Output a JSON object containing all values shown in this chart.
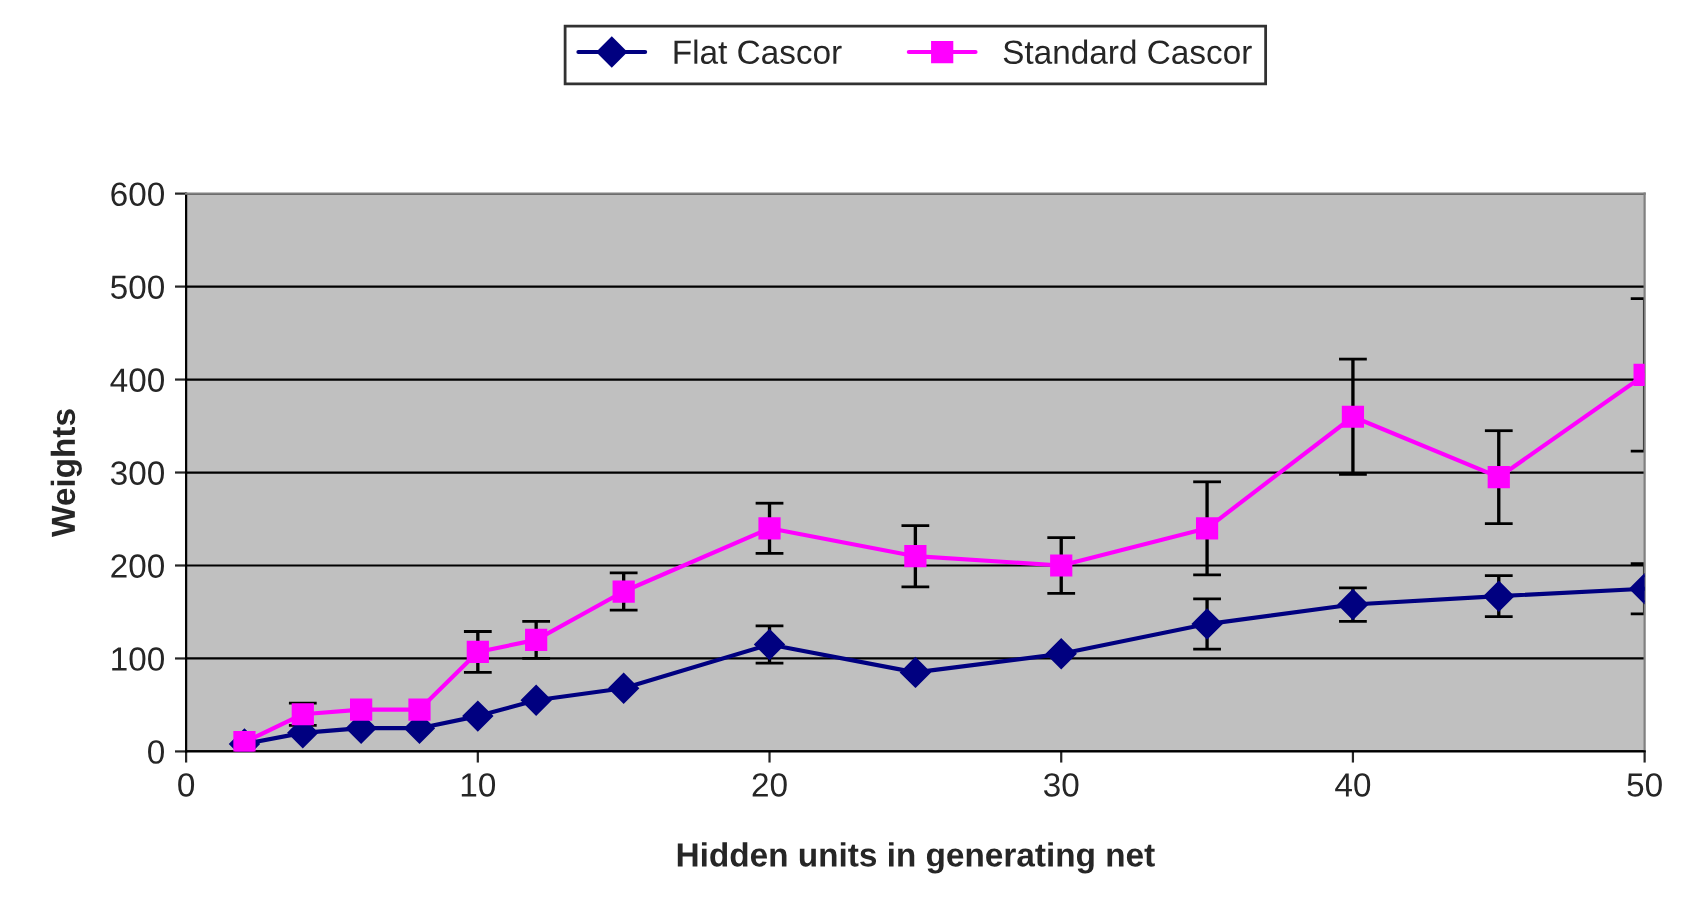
{
  "chart_data": {
    "type": "line",
    "xlabel": "Hidden units in generating net",
    "ylabel": "Weights",
    "x": [
      2,
      4,
      6,
      8,
      10,
      12,
      15,
      20,
      25,
      30,
      35,
      40,
      45,
      50
    ],
    "series": [
      {
        "name": "Flat Cascor",
        "color": "#000080",
        "marker": "diamond",
        "values": [
          8,
          20,
          25,
          25,
          38,
          55,
          68,
          115,
          85,
          105,
          137,
          158,
          167,
          175
        ],
        "errors": [
          null,
          null,
          null,
          null,
          null,
          null,
          null,
          20,
          null,
          null,
          27,
          18,
          22,
          27
        ]
      },
      {
        "name": "Standard Cascor",
        "color": "#ff00ff",
        "marker": "square",
        "values": [
          10,
          40,
          45,
          45,
          107,
          120,
          172,
          240,
          210,
          200,
          240,
          360,
          295,
          405
        ],
        "errors": [
          null,
          12,
          null,
          null,
          22,
          20,
          20,
          27,
          33,
          30,
          50,
          62,
          50,
          82
        ]
      }
    ],
    "xlim": [
      0,
      50
    ],
    "xticks": [
      0,
      10,
      20,
      30,
      40,
      50
    ],
    "ylim": [
      0,
      600
    ],
    "yticks": [
      0,
      100,
      200,
      300,
      400,
      500,
      600
    ],
    "grid": "y",
    "legend": "top"
  }
}
